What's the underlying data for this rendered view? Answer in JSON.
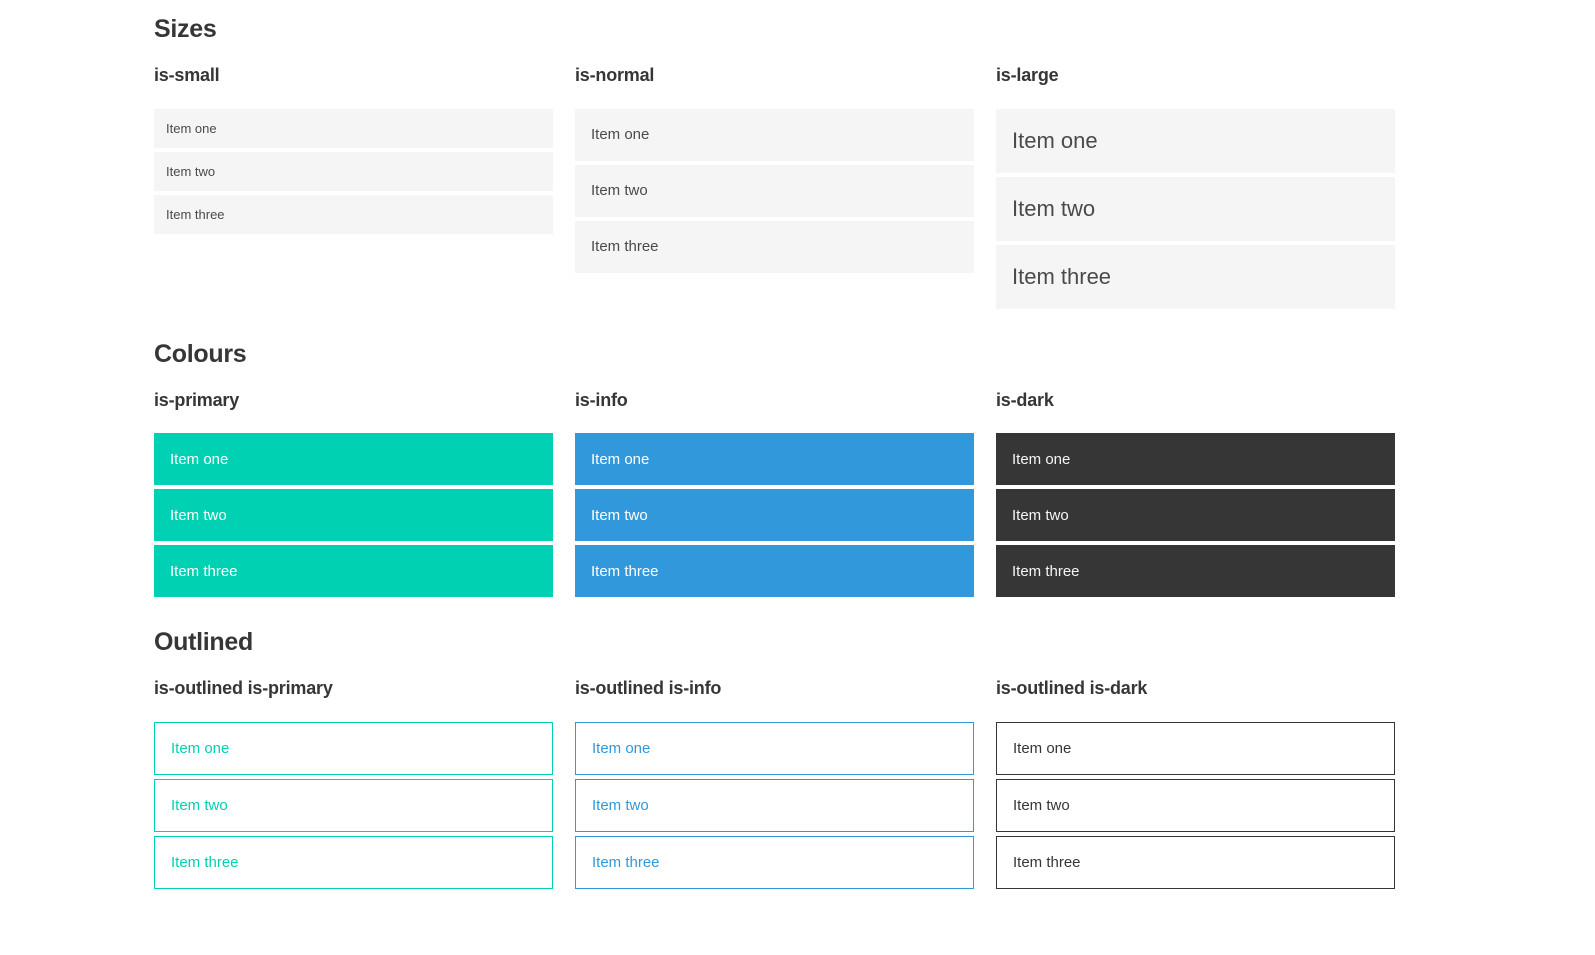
{
  "colors": {
    "primary": "#00d1b2",
    "info": "#3298dc",
    "dark": "#363636",
    "item-bg": "#f5f5f5",
    "item-text": "#4a4a4a",
    "heading": "#363636"
  },
  "sections": [
    {
      "title": "Sizes",
      "groups": [
        {
          "label": "is-small",
          "items": [
            "Item one",
            "Item two",
            "Item three"
          ]
        },
        {
          "label": "is-normal",
          "items": [
            "Item one",
            "Item two",
            "Item three"
          ]
        },
        {
          "label": "is-large",
          "items": [
            "Item one",
            "Item two",
            "Item three"
          ]
        }
      ]
    },
    {
      "title": "Colours",
      "groups": [
        {
          "label": "is-primary",
          "items": [
            "Item one",
            "Item two",
            "Item three"
          ]
        },
        {
          "label": "is-info",
          "items": [
            "Item one",
            "Item two",
            "Item three"
          ]
        },
        {
          "label": "is-dark",
          "items": [
            "Item one",
            "Item two",
            "Item three"
          ]
        }
      ]
    },
    {
      "title": "Outlined",
      "groups": [
        {
          "label": "is-outlined is-primary",
          "items": [
            "Item one",
            "Item two",
            "Item three"
          ]
        },
        {
          "label": "is-outlined is-info",
          "items": [
            "Item one",
            "Item two",
            "Item three"
          ]
        },
        {
          "label": "is-outlined is-dark",
          "items": [
            "Item one",
            "Item two",
            "Item three"
          ]
        }
      ]
    }
  ]
}
